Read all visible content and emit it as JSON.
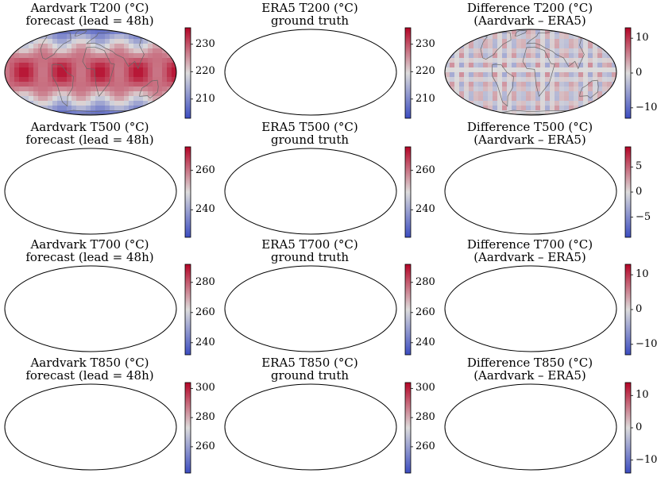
{
  "rows": [
    {
      "panels": [
        {
          "title1": "Aardvark T200 (°C)",
          "title2": "forecast (lead = 48h)",
          "kind": "abs",
          "ticks": [
            "230",
            "220",
            "210"
          ],
          "tick_values": [
            230,
            220,
            210
          ],
          "vmin": 203,
          "vmax": 236
        },
        {
          "title1": "ERA5 T200 (°C)",
          "title2": "ground truth",
          "kind": "abs",
          "ticks": [
            "230",
            "220",
            "210"
          ],
          "tick_values": [
            230,
            220,
            210
          ],
          "vmin": 203,
          "vmax": 236
        },
        {
          "title1": "Difference T200 (°C)",
          "title2": "(Aardvark – ERA5)",
          "kind": "diff",
          "ticks": [
            "10",
            "0",
            "−10"
          ],
          "tick_values": [
            10,
            0,
            -10
          ],
          "vmin": -13,
          "vmax": 13
        }
      ]
    },
    {
      "panels": [
        {
          "title1": "Aardvark T500 (°C)",
          "title2": "forecast (lead = 48h)",
          "kind": "abs",
          "ticks": [
            "260",
            "240"
          ],
          "tick_values": [
            260,
            240
          ],
          "vmin": 226,
          "vmax": 272
        },
        {
          "title1": "ERA5 T500 (°C)",
          "title2": "ground truth",
          "kind": "abs",
          "ticks": [
            "260",
            "240"
          ],
          "tick_values": [
            260,
            240
          ],
          "vmin": 226,
          "vmax": 272
        },
        {
          "title1": "Difference T500 (°C)",
          "title2": "(Aardvark – ERA5)",
          "kind": "diff",
          "ticks": [
            "5",
            "0",
            "−5"
          ],
          "tick_values": [
            5,
            0,
            -5
          ],
          "vmin": -9,
          "vmax": 9
        }
      ]
    },
    {
      "panels": [
        {
          "title1": "Aardvark T700 (°C)",
          "title2": "forecast (lead = 48h)",
          "kind": "abs",
          "ticks": [
            "280",
            "260",
            "240"
          ],
          "tick_values": [
            280,
            260,
            240
          ],
          "vmin": 232,
          "vmax": 292
        },
        {
          "title1": "ERA5 T700 (°C)",
          "title2": "ground truth",
          "kind": "abs",
          "ticks": [
            "280",
            "260",
            "240"
          ],
          "tick_values": [
            280,
            260,
            240
          ],
          "vmin": 232,
          "vmax": 292
        },
        {
          "title1": "Difference T700 (°C)",
          "title2": "(Aardvark – ERA5)",
          "kind": "diff",
          "ticks": [
            "10",
            "0",
            "−10"
          ],
          "tick_values": [
            10,
            0,
            -10
          ],
          "vmin": -13,
          "vmax": 13
        }
      ]
    },
    {
      "panels": [
        {
          "title1": "Aardvark T850 (°C)",
          "title2": "forecast (lead = 48h)",
          "kind": "abs",
          "ticks": [
            "300",
            "280",
            "260"
          ],
          "tick_values": [
            300,
            280,
            260
          ],
          "vmin": 242,
          "vmax": 304
        },
        {
          "title1": "ERA5 T850 (°C)",
          "title2": "ground truth",
          "kind": "abs",
          "ticks": [
            "300",
            "280",
            "260"
          ],
          "tick_values": [
            300,
            280,
            260
          ],
          "vmin": 242,
          "vmax": 304
        },
        {
          "title1": "Difference T850 (°C)",
          "title2": "(Aardvark – ERA5)",
          "kind": "diff",
          "ticks": [
            "10",
            "0",
            "−10"
          ],
          "tick_values": [
            10,
            0,
            -10
          ],
          "vmin": -14,
          "vmax": 14
        }
      ]
    }
  ],
  "colormap": {
    "name": "coolwarm",
    "low": "#3b4cc0",
    "mid": "#dddcdc",
    "high": "#b40426"
  },
  "land_outline_color": "#666666"
}
